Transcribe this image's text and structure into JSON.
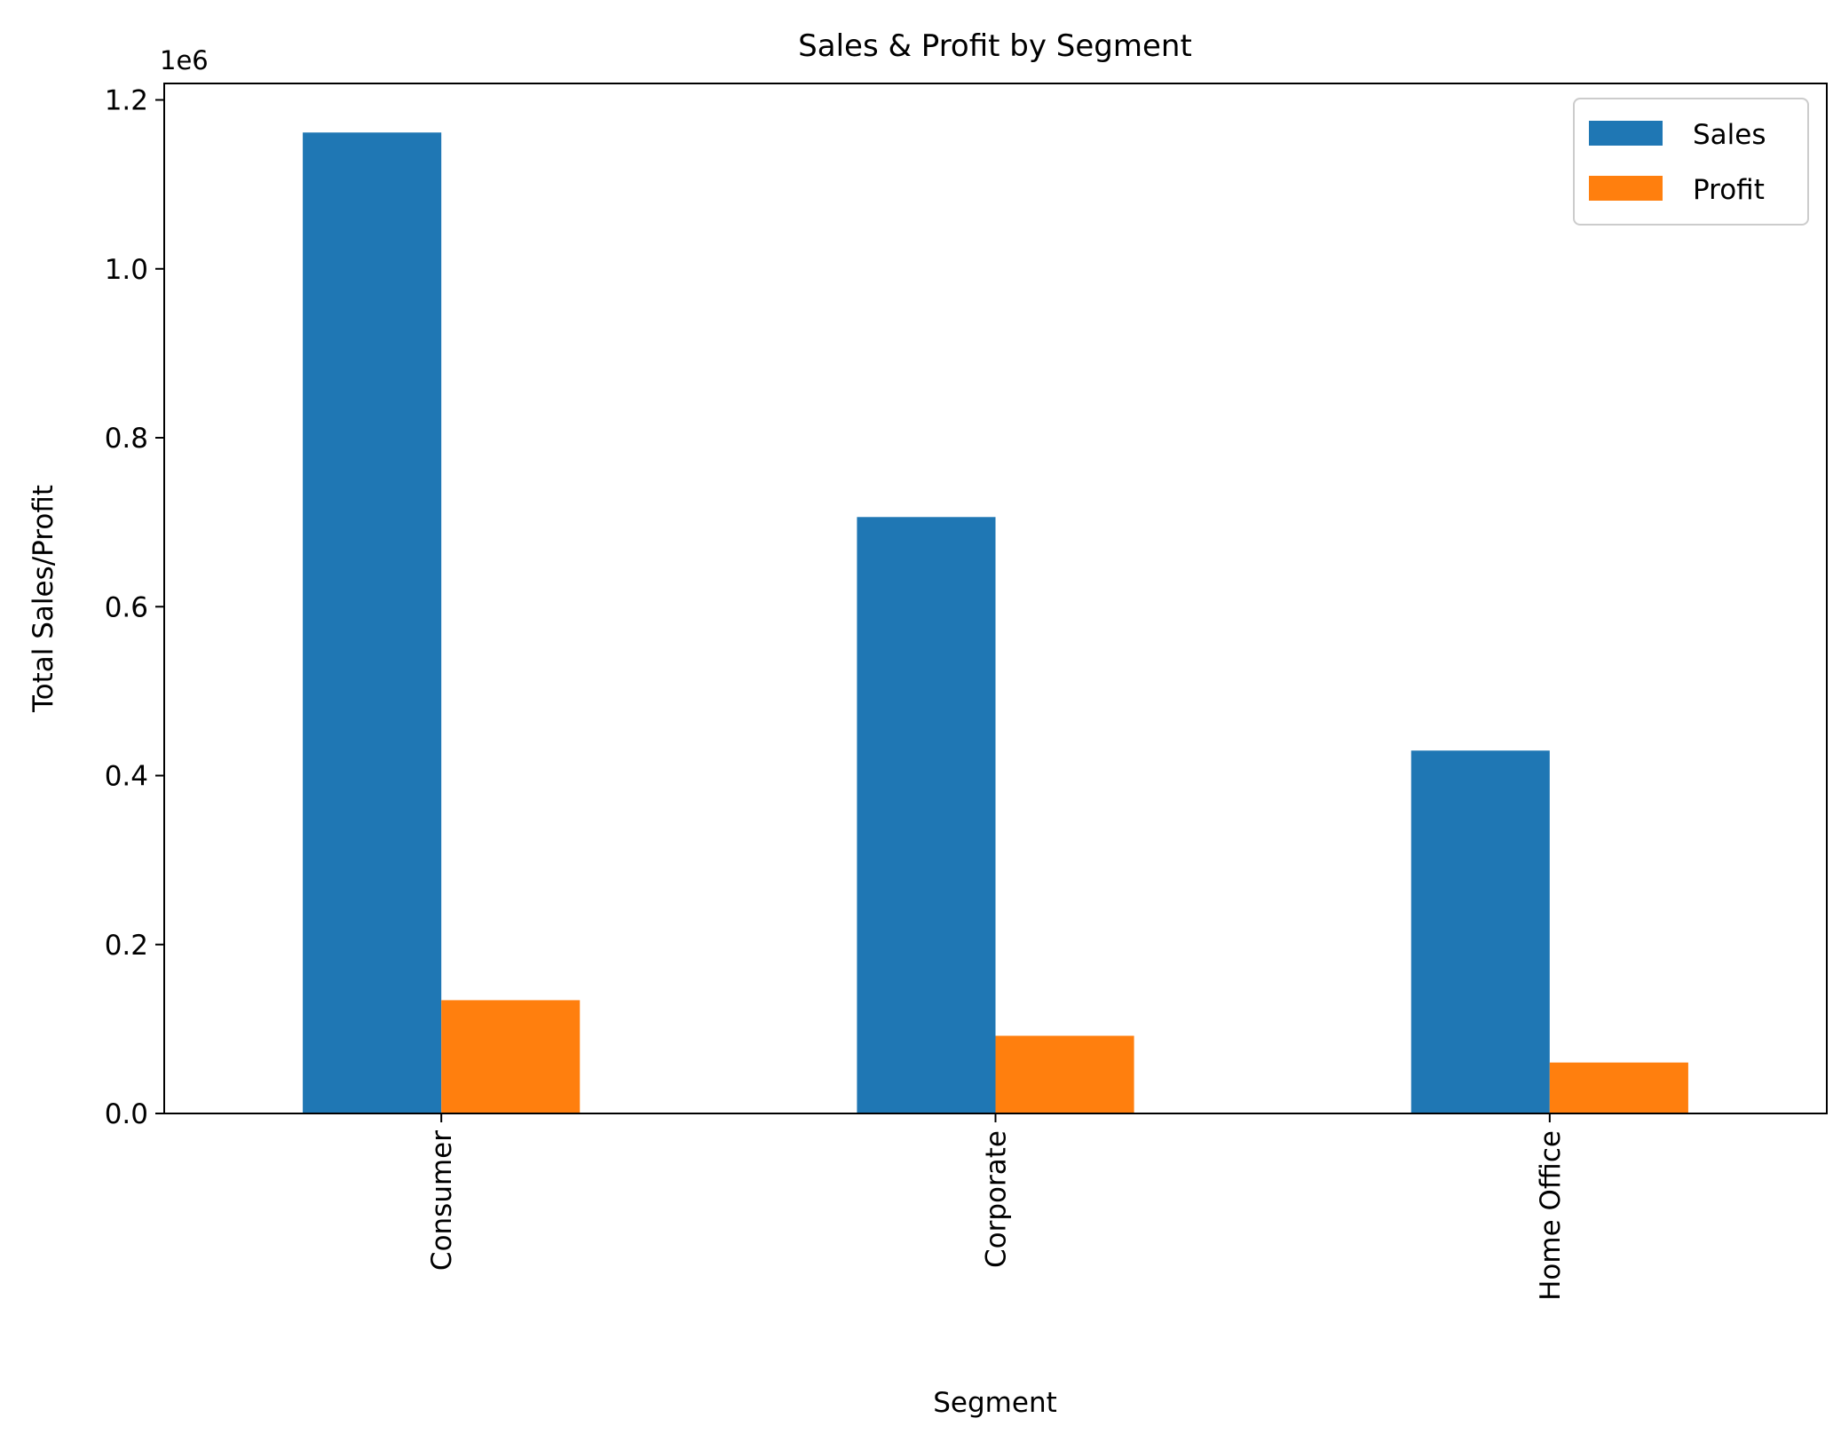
{
  "chart_data": {
    "type": "bar",
    "title": "Sales & Profit by Segment",
    "xlabel": "Segment",
    "ylabel": "Total Sales/Profit",
    "y_offset_label": "1e6",
    "categories": [
      "Consumer",
      "Corporate",
      "Home Office"
    ],
    "series": [
      {
        "name": "Sales",
        "color": "#1f77b4",
        "values": [
          1161401,
          706146,
          429653
        ]
      },
      {
        "name": "Profit",
        "color": "#ff7f0e",
        "values": [
          134119,
          91979,
          60299
        ]
      }
    ],
    "ylim": [
      0,
      1219471
    ],
    "y_ticks": [
      0,
      200000,
      400000,
      600000,
      800000,
      1000000,
      1200000
    ],
    "y_tick_labels": [
      "0.0",
      "0.2",
      "0.4",
      "0.6",
      "0.8",
      "1.0",
      "1.2"
    ],
    "grid": false,
    "legend_position": "top-right"
  }
}
